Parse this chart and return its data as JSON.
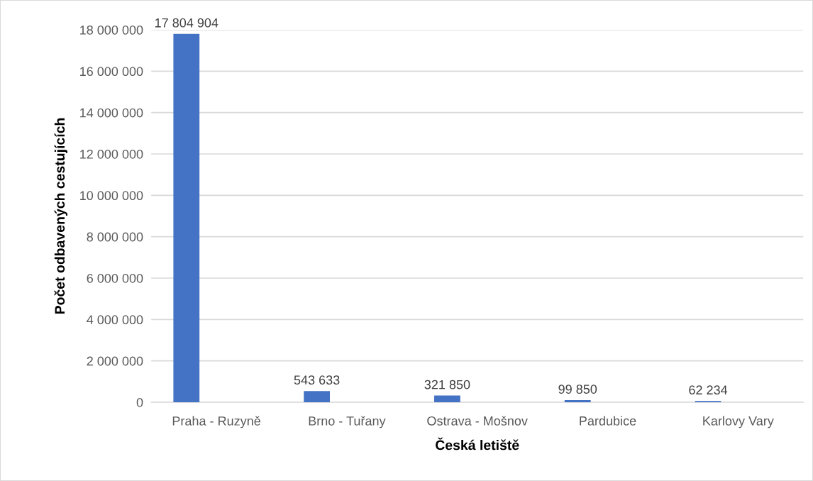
{
  "chart_data": {
    "type": "bar",
    "xlabel": "Česká letiště",
    "ylabel": "Počet odbavených cestujících",
    "categories": [
      "Praha - Ruzyně",
      "Brno - Tuřany",
      "Ostrava - Mošnov",
      "Pardubice",
      "Karlovy Vary"
    ],
    "values": [
      17804904,
      543633,
      321850,
      99850,
      62234
    ],
    "value_labels": [
      "17 804 904",
      "543 633",
      "321 850",
      "99 850",
      "62 234"
    ],
    "color": "#4472c4",
    "ylim": [
      0,
      18000000
    ],
    "yticks": [
      {
        "value": 0,
        "label": "0"
      },
      {
        "value": 2000000,
        "label": "2 000 000"
      },
      {
        "value": 4000000,
        "label": "4 000 000"
      },
      {
        "value": 6000000,
        "label": "6 000 000"
      },
      {
        "value": 8000000,
        "label": "8 000 000"
      },
      {
        "value": 10000000,
        "label": "10 000 000"
      },
      {
        "value": 12000000,
        "label": "12 000 000"
      },
      {
        "value": 14000000,
        "label": "14 000 000"
      },
      {
        "value": 16000000,
        "label": "16 000 000"
      },
      {
        "value": 18000000,
        "label": "18 000 000"
      }
    ],
    "grid": "y",
    "legend": false
  }
}
